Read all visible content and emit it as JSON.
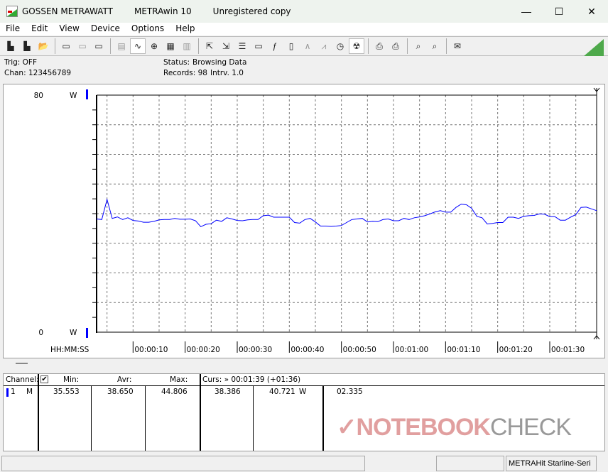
{
  "window": {
    "app_name": "GOSSEN METRAWATT",
    "product": "METRAwin 10",
    "license": "Unregistered copy",
    "minimize": "—",
    "maximize": "☐",
    "close": "✕"
  },
  "menu": [
    "File",
    "Edit",
    "View",
    "Device",
    "Options",
    "Help"
  ],
  "toolbar": {
    "icons": [
      "save-icon",
      "save-as-icon",
      "open-icon",
      "|",
      "device-read-icon",
      "device-transfer-icon",
      "device-memory-icon",
      "|",
      "keyboard-icon",
      "waveform-icon",
      "crosshair-icon",
      "table-icon",
      "bar-chart-icon",
      "|",
      "export-icon",
      "import-icon",
      "list-icon",
      "monitor-icon",
      "function-icon",
      "device-icon",
      "signal-icon",
      "pulse-icon",
      "clock-icon",
      "globe-icon",
      "|",
      "print-icon",
      "printer-icon",
      "|",
      "zoom-wave-icon",
      "zoom-icon",
      "|",
      "message-icon"
    ],
    "glyphs": [
      "▙",
      "▙",
      "📂",
      "|",
      "▭",
      "▭",
      "▭",
      "|",
      "▤",
      "∿",
      "⊕",
      "▦",
      "▥",
      "|",
      "⇱",
      "⇲",
      "☰",
      "▭",
      "ƒ",
      "▯",
      "∧",
      "⩘",
      "◷",
      "☢",
      "|",
      "⎙",
      "⎙",
      "|",
      "⌕",
      "⌕",
      "|",
      "✉"
    ],
    "active": [
      9,
      23
    ],
    "disabled": [
      5,
      8,
      12,
      20,
      21
    ]
  },
  "info": {
    "trig": "Trig: OFF",
    "chan": "Chan:  123456789",
    "status_label": "Status:",
    "status_value": "Browsing Data",
    "records": "Records: 98",
    "interval": "Intrv. 1.0"
  },
  "chart_data": {
    "type": "line",
    "y_top_label": "80",
    "y_bottom_label": "0",
    "y_unit": "W",
    "ylim": [
      0,
      80
    ],
    "x_label": "HH:MM:SS",
    "xlim": [
      "00:00:03",
      "00:01:39"
    ],
    "x_start": "00:00:03",
    "x_interval_s": 1.0,
    "x_ticks": [
      "00:00:10",
      "00:00:20",
      "00:00:30",
      "00:00:40",
      "00:00:50",
      "00:01:00",
      "00:01:10",
      "00:01:20",
      "00:01:30"
    ],
    "grid": true,
    "series": [
      {
        "color": "#0000ff",
        "values": [
          38.2,
          38.0,
          44.8,
          38.4,
          38.9,
          38.0,
          38.6,
          37.7,
          37.5,
          37.1,
          37.1,
          37.4,
          37.9,
          38.0,
          38.0,
          38.4,
          38.1,
          38.1,
          38.2,
          37.6,
          35.6,
          36.4,
          36.6,
          37.8,
          37.4,
          38.6,
          38.2,
          37.7,
          37.6,
          37.9,
          38.0,
          38.0,
          39.3,
          39.5,
          38.8,
          38.8,
          38.8,
          38.8,
          37.0,
          36.8,
          38.0,
          38.4,
          37.2,
          35.8,
          35.8,
          35.7,
          35.8,
          36.0,
          37.0,
          38.0,
          38.2,
          38.4,
          37.2,
          37.4,
          37.3,
          38.0,
          38.2,
          37.6,
          37.6,
          38.4,
          38.0,
          38.6,
          38.9,
          39.3,
          39.9,
          40.6,
          41.0,
          40.5,
          40.5,
          42.1,
          43.2,
          43.0,
          41.8,
          39.1,
          38.6,
          36.5,
          36.7,
          37.0,
          37.0,
          38.8,
          38.8,
          38.4,
          39.1,
          39.3,
          39.4,
          39.9,
          39.8,
          39.0,
          39.0,
          37.8,
          37.8,
          38.8,
          39.7,
          42.1,
          42.2,
          41.6,
          41.0
        ]
      }
    ]
  },
  "table": {
    "headers": {
      "channel": "Channel:",
      "min": "Min:",
      "avr": "Avr:",
      "max": "Max:",
      "cursor": "Curs: » 00:01:39 (+01:36)"
    },
    "checked": true,
    "row": {
      "channel": "1",
      "mode": "M",
      "min": "35.553",
      "avr": "38.650",
      "max": "44.806",
      "cursor_a": "38.386",
      "cursor_b": "40.721",
      "unit": "W",
      "delta": "02.335"
    },
    "channel_color": "#0000ff"
  },
  "status": {
    "device": "METRAHit Starline-Seri"
  },
  "watermark": {
    "a": "NOTEBOOK",
    "b": "CHECK"
  }
}
